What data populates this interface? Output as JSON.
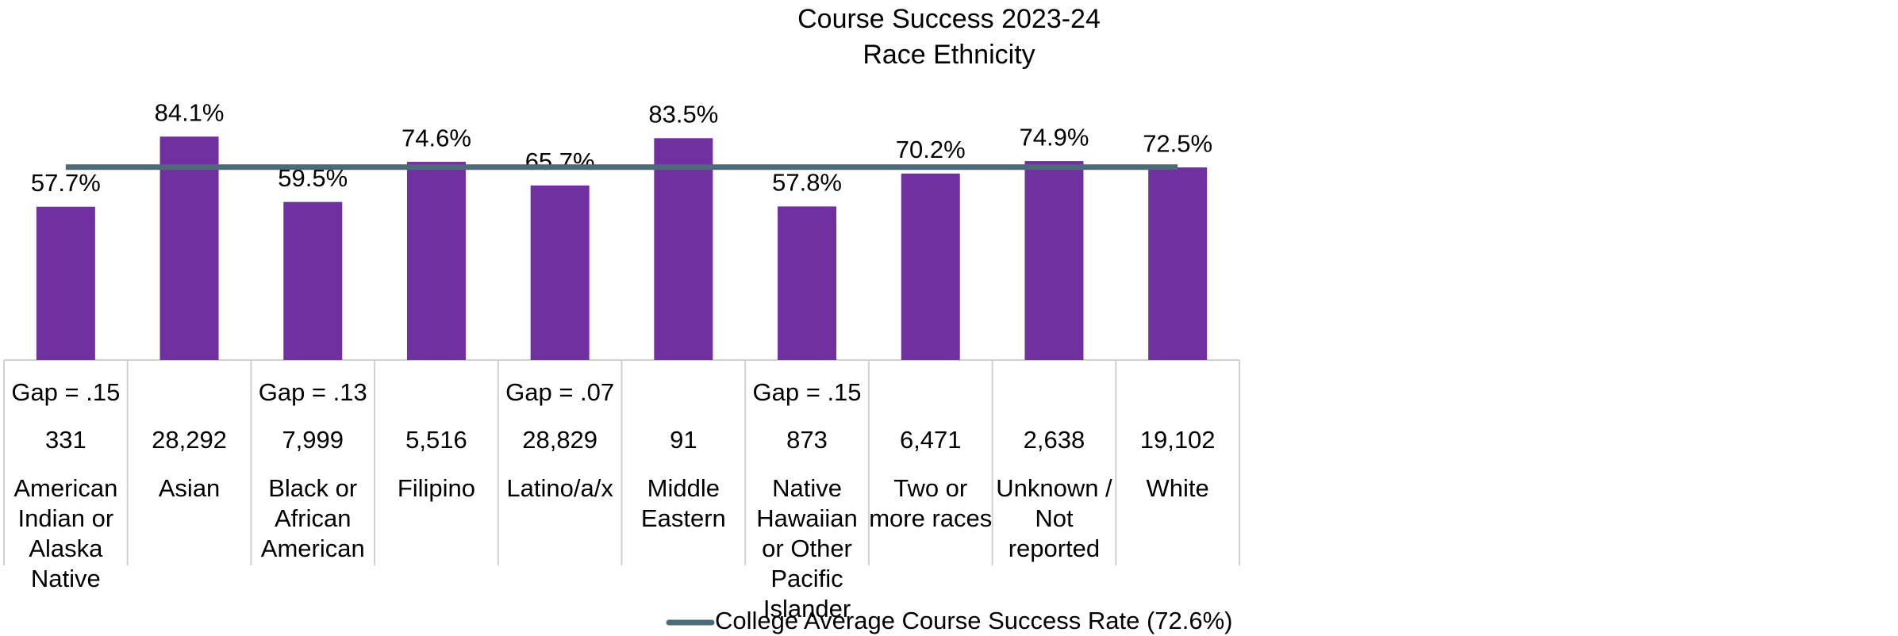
{
  "chart_data": {
    "type": "bar",
    "title": "Course Success 2023-24",
    "subtitle": "Race Ethnicity",
    "categories": [
      "American Indian or Alaska Native",
      "Asian",
      "Black or African American",
      "Filipino",
      "Latino/a/x",
      "Middle Eastern",
      "Native Hawaiian or Other Pacific Islander",
      "Two or more races",
      "Unknown / Not reported",
      "White"
    ],
    "values": [
      57.7,
      84.1,
      59.5,
      74.6,
      65.7,
      83.5,
      57.8,
      70.2,
      74.9,
      72.5
    ],
    "value_labels": [
      "57.7%",
      "84.1%",
      "59.5%",
      "74.6%",
      "65.7%",
      "83.5%",
      "57.8%",
      "70.2%",
      "74.9%",
      "72.5%"
    ],
    "color": "#7030a0",
    "gaps": [
      "Gap = .15",
      null,
      "Gap = .13",
      null,
      "Gap = .07",
      null,
      "Gap = .15",
      null,
      null,
      null
    ],
    "counts": [
      "331",
      "28,292",
      "7,999",
      "5,516",
      "28,829",
      "91",
      "873",
      "6,471",
      "2,638",
      "19,102"
    ],
    "average": {
      "name": "College Average Course Success Rate (72.6%)",
      "value": 72.6,
      "color": "#4a6b7a"
    },
    "ylim": [
      0,
      100
    ]
  }
}
